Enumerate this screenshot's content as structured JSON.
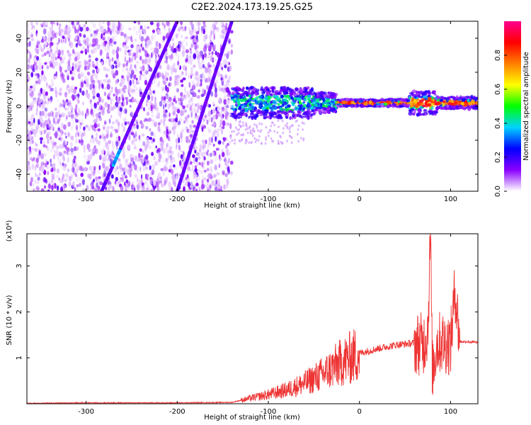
{
  "title": "C2E2.2024.173.19.25.G25",
  "chart_data": [
    {
      "type": "heatmap",
      "xlabel": "Height of straight line (km)",
      "ylabel": "Frequency (Hz)",
      "xlim": [
        -365,
        130
      ],
      "ylim": [
        -50,
        50
      ],
      "xticks": [
        -300,
        -200,
        -100,
        0,
        100
      ],
      "yticks": [
        -40,
        -20,
        0,
        20,
        40
      ],
      "colorbar": {
        "label": "Normalized spectral amplitude",
        "range": [
          0,
          1
        ],
        "ticks": [
          "0.0",
          "0.2",
          "0.4",
          "0.6",
          "0.8"
        ],
        "tick_values": [
          0,
          0.2,
          0.4,
          0.6,
          0.8
        ],
        "colormap": [
          "#ffffff",
          "#8a00ff",
          "#0000ff",
          "#00d2ff",
          "#00ff00",
          "#ffff00",
          "#ff7f00",
          "#ff0000",
          "#ff0090"
        ]
      },
      "features": {
        "noise_region_x": [
          -365,
          -140
        ],
        "diagonal_line_1": {
          "x": [
            -283,
            -200
          ],
          "y": [
            -50,
            50
          ]
        },
        "diagonal_line_2": {
          "x": [
            -200,
            -140
          ],
          "y": [
            -50,
            50
          ]
        },
        "signal_band_x": [
          -140,
          130
        ],
        "signal_center_freq": 2
      }
    },
    {
      "type": "line",
      "xlabel": "Height of straight line (km)",
      "ylabel": "SNR (10 * v/v)",
      "yscale_label": "(x10⁴)",
      "xlim": [
        -365,
        130
      ],
      "ylim": [
        0,
        3.7
      ],
      "xticks": [
        -300,
        -200,
        -100,
        0,
        100
      ],
      "yticks": [
        1,
        2,
        3
      ],
      "color": "#ee3333",
      "series": [
        {
          "x": [
            -365,
            -300,
            -200,
            -140,
            -120,
            -100,
            -80,
            -60,
            -40,
            -20,
            0,
            20,
            40,
            60,
            70,
            75,
            78,
            80,
            85,
            90,
            100,
            105,
            110,
            120,
            130
          ],
          "y": [
            0.01,
            0.02,
            0.02,
            0.03,
            0.12,
            0.2,
            0.3,
            0.45,
            0.65,
            0.9,
            1.1,
            1.2,
            1.28,
            1.32,
            1.3,
            1.6,
            3.7,
            0.7,
            1.3,
            1.35,
            1.3,
            2.5,
            1.35,
            1.35,
            1.33
          ]
        }
      ]
    }
  ]
}
